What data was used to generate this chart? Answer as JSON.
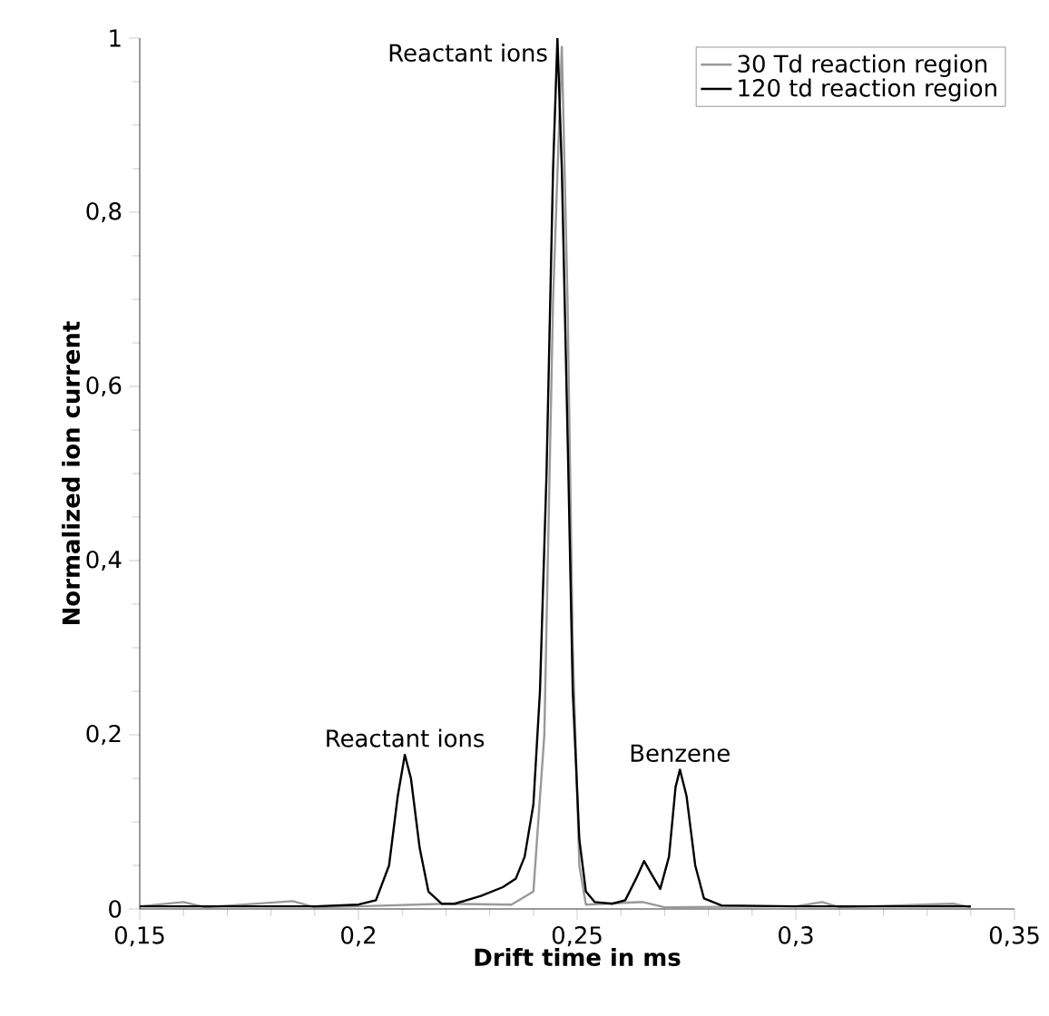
{
  "chart_data": {
    "type": "line",
    "xlabel": "Drift time in ms",
    "ylabel": "Normalized ion current",
    "xlim": [
      0.15,
      0.35
    ],
    "ylim": [
      0,
      1
    ],
    "xticks": [
      {
        "value": 0.15,
        "label": "0,15"
      },
      {
        "value": 0.2,
        "label": "0,2"
      },
      {
        "value": 0.25,
        "label": "0,25"
      },
      {
        "value": 0.3,
        "label": "0,3"
      },
      {
        "value": 0.35,
        "label": "0,35"
      }
    ],
    "yticks": [
      0,
      {
        "value": 0.2,
        "label": "0,2"
      },
      {
        "value": 0.4,
        "label": "0,4"
      },
      {
        "value": 0.6,
        "label": "0,6"
      },
      {
        "value": 0.8,
        "label": "0,8"
      },
      1
    ],
    "legend": "top right",
    "grid": false,
    "marker": "none",
    "line_style": "solid",
    "series": [
      {
        "name": "30 Td reaction region",
        "color": "#999999",
        "x": [
          0.15,
          0.16,
          0.165,
          0.185,
          0.19,
          0.2,
          0.22,
          0.235,
          0.24,
          0.2425,
          0.2445,
          0.2465,
          0.2478,
          0.249,
          0.2505,
          0.252,
          0.265,
          0.27,
          0.3,
          0.306,
          0.31,
          0.336,
          0.34
        ],
        "values": [
          0.003,
          0.008,
          0.002,
          0.009,
          0.002,
          0.003,
          0.006,
          0.005,
          0.02,
          0.2,
          0.7,
          0.99,
          0.7,
          0.3,
          0.05,
          0.005,
          0.008,
          0.002,
          0.003,
          0.008,
          0.002,
          0.006,
          0.002
        ]
      },
      {
        "name": "120 td reaction region",
        "color": "#000000",
        "x": [
          0.15,
          0.19,
          0.2,
          0.204,
          0.207,
          0.209,
          0.2106,
          0.212,
          0.214,
          0.216,
          0.219,
          0.222,
          0.228,
          0.233,
          0.236,
          0.238,
          0.24,
          0.2415,
          0.243,
          0.2445,
          0.2455,
          0.2465,
          0.248,
          0.249,
          0.2505,
          0.252,
          0.254,
          0.258,
          0.261,
          0.2635,
          0.2653,
          0.267,
          0.269,
          0.271,
          0.2725,
          0.2735,
          0.275,
          0.277,
          0.279,
          0.283,
          0.3,
          0.34
        ],
        "values": [
          0.003,
          0.003,
          0.005,
          0.01,
          0.05,
          0.13,
          0.177,
          0.15,
          0.07,
          0.02,
          0.006,
          0.006,
          0.015,
          0.025,
          0.035,
          0.06,
          0.12,
          0.25,
          0.5,
          0.85,
          1.0,
          0.85,
          0.5,
          0.25,
          0.08,
          0.02,
          0.008,
          0.006,
          0.01,
          0.035,
          0.055,
          0.04,
          0.023,
          0.06,
          0.14,
          0.16,
          0.13,
          0.05,
          0.012,
          0.004,
          0.003,
          0.003
        ]
      }
    ],
    "annotations": [
      {
        "text": "Reactant ions",
        "x": 0.2455,
        "y": 1.0
      },
      {
        "text": "Reactant ions",
        "x": 0.2106,
        "y": 0.177
      },
      {
        "text": "Benzene",
        "x": 0.2735,
        "y": 0.16
      }
    ]
  }
}
